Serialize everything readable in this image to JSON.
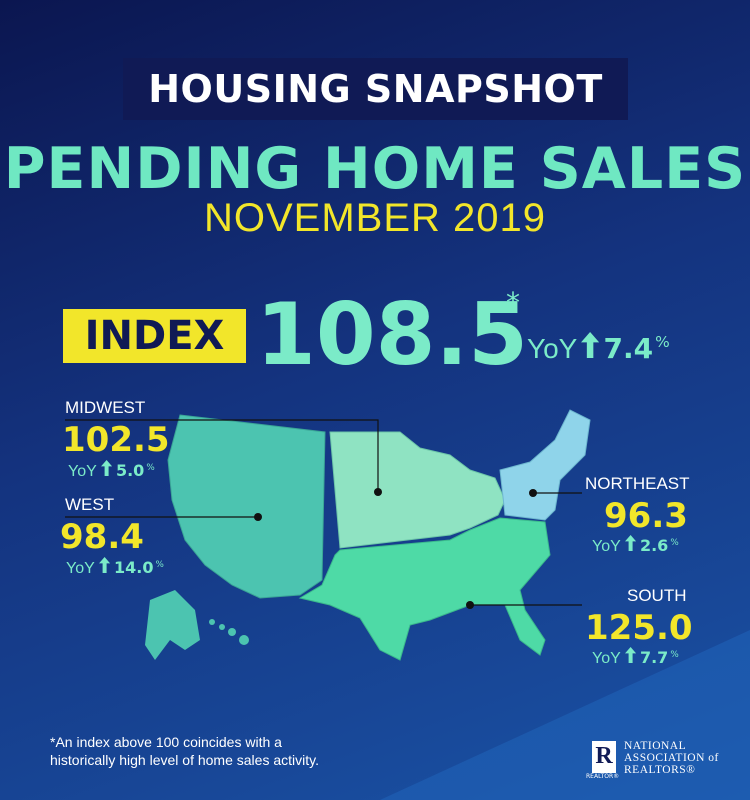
{
  "header": {
    "snapshot": "HOUSING SNAPSHOT",
    "title": "PENDING HOME SALES",
    "period": "NOVEMBER 2019"
  },
  "index": {
    "label": "INDEX",
    "value": "108.5",
    "note_mark": "*",
    "yoy_label": "YoY",
    "yoy_change": "7.4",
    "yoy_unit": "%"
  },
  "regions": [
    {
      "name": "MIDWEST",
      "value": "102.5",
      "yoy_label": "YoY",
      "yoy_change": "5.0",
      "yoy_unit": "%"
    },
    {
      "name": "WEST",
      "value": "98.4",
      "yoy_label": "YoY",
      "yoy_change": "14.0",
      "yoy_unit": "%"
    },
    {
      "name": "NORTHEAST",
      "value": "96.3",
      "yoy_label": "YoY",
      "yoy_change": "2.6",
      "yoy_unit": "%"
    },
    {
      "name": "SOUTH",
      "value": "125.0",
      "yoy_label": "YoY",
      "yoy_change": "7.7",
      "yoy_unit": "%"
    }
  ],
  "footnote": [
    "*An index above 100 coincides with a",
    "historically high level of home sales activity."
  ],
  "logo": {
    "mark": "R",
    "mark_caption": "REALTOR®",
    "lines": [
      "NATIONAL",
      "ASSOCIATION of",
      "REALTORS®"
    ]
  }
}
